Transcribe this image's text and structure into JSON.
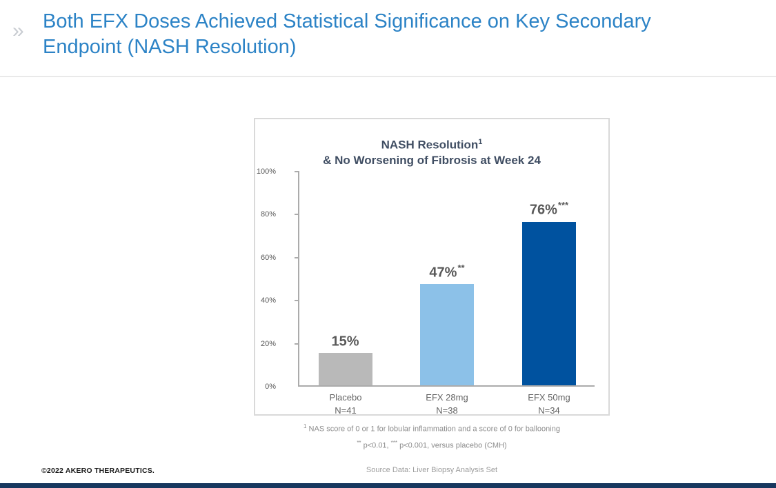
{
  "header": {
    "chevron": "»",
    "title_line1": "Both EFX Doses Achieved Statistical Significance on Key Secondary",
    "title_line2": "Endpoint (NASH Resolution)",
    "title_color": "#2c83c6"
  },
  "chart_data": {
    "type": "bar",
    "title_line1": "NASH Resolution",
    "title_superscript": "1",
    "title_line2": "& No Worsening of Fibrosis at Week 24",
    "ylabel": "",
    "xlabel": "",
    "ylim": [
      0,
      100
    ],
    "yticks": [
      "100%",
      "80%",
      "60%",
      "40%",
      "20%",
      "0%"
    ],
    "grid": false,
    "legend": "none",
    "categories": [
      {
        "label": "Placebo",
        "n": "N=41",
        "value": 15,
        "display": "15%",
        "significance": "",
        "color": "#b9b9b9"
      },
      {
        "label": "EFX 28mg",
        "n": "N=38",
        "value": 47,
        "display": "47%",
        "significance": "**",
        "color": "#8cc1e8"
      },
      {
        "label": "EFX 50mg",
        "n": "N=34",
        "value": 76,
        "display": "76%",
        "significance": "***",
        "color": "#00529f"
      }
    ]
  },
  "footnotes": {
    "note1_sup": "1",
    "note1_text": " NAS score of 0 or 1 for lobular inflammation and a score of 0 for ballooning",
    "note2_sig1": "**",
    "note2_part1": " p<0.01, ",
    "note2_sig2": "***",
    "note2_part2": " p<0.001, versus placebo (CMH)"
  },
  "footer": {
    "copyright": "©2022 AKERO THERAPEUTICS.",
    "source": "Source Data: Liver Biopsy Analysis Set",
    "bar_color": "#17375e"
  }
}
